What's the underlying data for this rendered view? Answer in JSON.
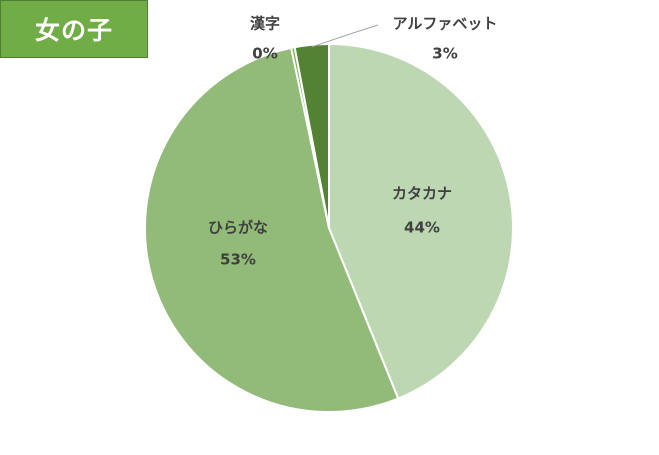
{
  "title": "女の子",
  "colors": {
    "title_bg": "#70ad47",
    "leader_line": "#a6a6a6",
    "slice_border": "#ffffff"
  },
  "chart_data": {
    "type": "pie",
    "start": "top, clockwise",
    "categories": [
      "カタカナ",
      "ひらがな",
      "漢字",
      "アルファベット"
    ],
    "values": [
      44,
      53,
      0.3,
      3
    ],
    "value_labels": [
      "44%",
      "53%",
      "0%",
      "3%"
    ],
    "colors": [
      "#bdd7b3",
      "#92ba78",
      "#73ab4c",
      "#548235"
    ],
    "data_labels": "category name and percentage"
  }
}
